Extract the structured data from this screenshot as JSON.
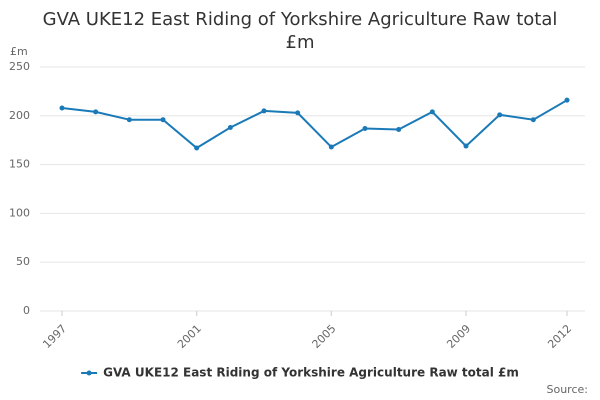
{
  "chart_data": {
    "type": "line",
    "title": "GVA UKE12 East Riding of Yorkshire Agriculture Raw total £m",
    "y_label": "£m",
    "source": "Source:",
    "x": [
      1997,
      1998,
      1999,
      2000,
      2001,
      2002,
      2003,
      2004,
      2005,
      2006,
      2007,
      2008,
      2009,
      2010,
      2011,
      2012
    ],
    "series": [
      {
        "name": "GVA UKE12 East Riding of Yorkshire Agriculture Raw total £m",
        "color": "#1a7ab8",
        "values": [
          208,
          204,
          196,
          196,
          167,
          188,
          205,
          203,
          168,
          187,
          186,
          204,
          169,
          201,
          196,
          216
        ]
      }
    ],
    "xlim": [
      1997,
      2012
    ],
    "xticks": [
      1997,
      2001,
      2005,
      2009,
      2012
    ],
    "ylim": [
      0,
      250
    ],
    "yticks": [
      0,
      50,
      100,
      150,
      200,
      250
    ],
    "grid": true,
    "legend": "bottom"
  }
}
